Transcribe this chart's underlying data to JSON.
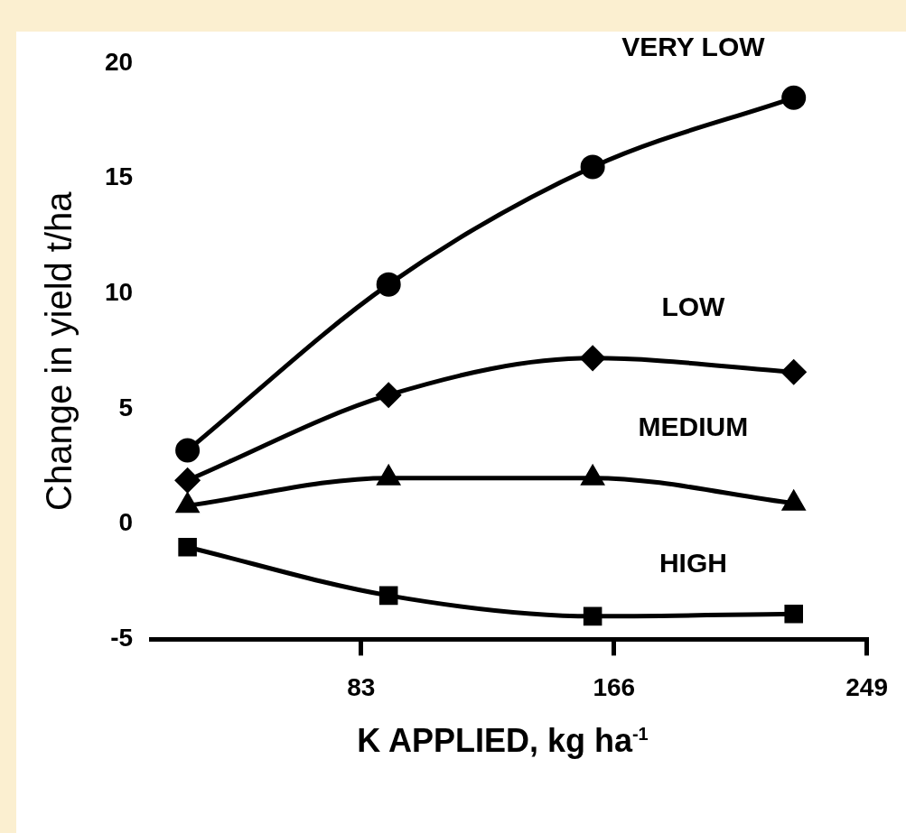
{
  "chart_data": {
    "type": "line",
    "xlabel": "K  APPLIED,  kg ha$^{-1}$",
    "ylabel": "Change in yield t/ha",
    "x": [
      26,
      92,
      159,
      225
    ],
    "series": [
      {
        "name": "VERY LOW",
        "color": "#000000",
        "marker": "circle",
        "values": [
          3.2,
          10.4,
          15.5,
          18.5
        ]
      },
      {
        "name": "LOW",
        "color": "#000000",
        "marker": "diamond",
        "values": [
          1.9,
          5.6,
          7.2,
          6.6
        ]
      },
      {
        "name": "MEDIUM",
        "color": "#000000",
        "marker": "triangle",
        "values": [
          0.8,
          2.0,
          2.0,
          0.9
        ]
      },
      {
        "name": "HIGH",
        "color": "#000000",
        "marker": "square",
        "values": [
          -1.0,
          -3.1,
          -4.0,
          -3.9
        ]
      }
    ],
    "xlim": [
      14,
      249
    ],
    "xticks": [
      83,
      166,
      249
    ],
    "ylim": [
      -5,
      20
    ],
    "yticks": [
      -5,
      0,
      5,
      10,
      15,
      20
    ],
    "grid": false,
    "legend": false
  }
}
